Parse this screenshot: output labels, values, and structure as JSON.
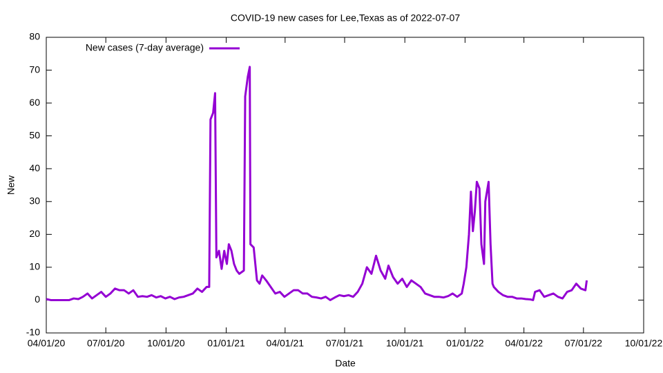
{
  "chart_data": {
    "type": "line",
    "title": "COVID-19 new cases for Lee,Texas as of 2022-07-07",
    "x_label": "Date",
    "y_label": "New",
    "xlim": [
      "2020-04-01",
      "2022-10-01"
    ],
    "xticks": [
      {
        "value": "2020-04-01",
        "label": "04/01/20"
      },
      {
        "value": "2020-07-01",
        "label": "07/01/20"
      },
      {
        "value": "2020-10-01",
        "label": "10/01/20"
      },
      {
        "value": "2021-01-01",
        "label": "01/01/21"
      },
      {
        "value": "2021-04-01",
        "label": "04/01/21"
      },
      {
        "value": "2021-07-01",
        "label": "07/01/21"
      },
      {
        "value": "2021-10-01",
        "label": "10/01/21"
      },
      {
        "value": "2022-01-01",
        "label": "01/01/22"
      },
      {
        "value": "2022-04-01",
        "label": "04/01/22"
      },
      {
        "value": "2022-07-01",
        "label": "07/01/22"
      },
      {
        "value": "2022-10-01",
        "label": "10/01/22"
      }
    ],
    "ylim": [
      -10,
      80
    ],
    "yticks": [
      -10,
      0,
      10,
      20,
      30,
      40,
      50,
      60,
      70,
      80
    ],
    "grid": false,
    "legend_position": "top-left",
    "x": [
      "2020-04-01",
      "2020-04-08",
      "2020-04-15",
      "2020-04-22",
      "2020-04-29",
      "2020-05-06",
      "2020-05-13",
      "2020-05-20",
      "2020-05-27",
      "2020-06-03",
      "2020-06-10",
      "2020-06-17",
      "2020-06-24",
      "2020-07-01",
      "2020-07-08",
      "2020-07-15",
      "2020-07-22",
      "2020-07-29",
      "2020-08-05",
      "2020-08-12",
      "2020-08-19",
      "2020-08-26",
      "2020-09-02",
      "2020-09-09",
      "2020-09-16",
      "2020-09-23",
      "2020-09-30",
      "2020-10-07",
      "2020-10-14",
      "2020-10-21",
      "2020-10-28",
      "2020-11-04",
      "2020-11-11",
      "2020-11-18",
      "2020-11-25",
      "2020-12-02",
      "2020-12-06",
      "2020-12-08",
      "2020-12-12",
      "2020-12-15",
      "2020-12-17",
      "2020-12-21",
      "2020-12-25",
      "2020-12-29",
      "2021-01-02",
      "2021-01-05",
      "2021-01-09",
      "2021-01-13",
      "2021-01-17",
      "2021-01-21",
      "2021-01-28",
      "2021-01-30",
      "2021-02-03",
      "2021-02-06",
      "2021-02-07",
      "2021-02-12",
      "2021-02-17",
      "2021-02-21",
      "2021-02-25",
      "2021-03-03",
      "2021-03-10",
      "2021-03-17",
      "2021-03-24",
      "2021-03-31",
      "2021-04-07",
      "2021-04-14",
      "2021-04-21",
      "2021-04-28",
      "2021-05-05",
      "2021-05-12",
      "2021-05-19",
      "2021-05-26",
      "2021-06-02",
      "2021-06-09",
      "2021-06-16",
      "2021-06-23",
      "2021-06-30",
      "2021-07-07",
      "2021-07-14",
      "2021-07-21",
      "2021-07-28",
      "2021-08-04",
      "2021-08-11",
      "2021-08-18",
      "2021-08-25",
      "2021-09-01",
      "2021-09-06",
      "2021-09-13",
      "2021-09-20",
      "2021-09-27",
      "2021-10-04",
      "2021-10-11",
      "2021-10-18",
      "2021-10-25",
      "2021-11-01",
      "2021-11-08",
      "2021-11-15",
      "2021-11-22",
      "2021-11-29",
      "2021-12-06",
      "2021-12-13",
      "2021-12-20",
      "2021-12-27",
      "2021-12-30",
      "2022-01-03",
      "2022-01-07",
      "2022-01-10",
      "2022-01-13",
      "2022-01-16",
      "2022-01-19",
      "2022-01-23",
      "2022-01-26",
      "2022-01-30",
      "2022-02-01",
      "2022-02-06",
      "2022-02-09",
      "2022-02-12",
      "2022-02-14",
      "2022-02-21",
      "2022-02-28",
      "2022-03-07",
      "2022-03-14",
      "2022-03-21",
      "2022-03-28",
      "2022-04-04",
      "2022-04-11",
      "2022-04-15",
      "2022-04-18",
      "2022-04-25",
      "2022-05-02",
      "2022-05-09",
      "2022-05-16",
      "2022-05-23",
      "2022-05-30",
      "2022-06-06",
      "2022-06-13",
      "2022-06-20",
      "2022-06-27",
      "2022-07-04",
      "2022-07-06"
    ],
    "series": [
      {
        "name": "New cases (7-day average)",
        "color": "#9400d3",
        "values": [
          0.3,
          0,
          0,
          0,
          0,
          0,
          0.5,
          0.3,
          1,
          2,
          0.5,
          1.5,
          2.5,
          1,
          2,
          3.5,
          3,
          3,
          2,
          3,
          1,
          1.2,
          1,
          1.5,
          0.8,
          1.2,
          0.5,
          1,
          0.3,
          0.8,
          1,
          1.5,
          2,
          3.5,
          2.5,
          4,
          4,
          55,
          57,
          63,
          13,
          15,
          9.5,
          15,
          11,
          17,
          15,
          11,
          9,
          8,
          9,
          62,
          68,
          71,
          17,
          16,
          6,
          5,
          7.5,
          6,
          4,
          2,
          2.5,
          1,
          2,
          3,
          3,
          2,
          2,
          1,
          0.8,
          0.5,
          1,
          0,
          0.8,
          1.5,
          1.2,
          1.5,
          1,
          2.5,
          5,
          10,
          8,
          13.5,
          9,
          6.5,
          10.5,
          7,
          5,
          6.5,
          4,
          6,
          5,
          4,
          2,
          1.5,
          1,
          1,
          0.8,
          1.2,
          2,
          1,
          2,
          5,
          10,
          20,
          33,
          21,
          27,
          36,
          34,
          17,
          11,
          30,
          36,
          17,
          5,
          4,
          2.5,
          1.5,
          1,
          1,
          0.5,
          0.5,
          0.3,
          0.2,
          0,
          2.5,
          3,
          1,
          1.5,
          2,
          1,
          0.5,
          2.5,
          3,
          5,
          3.5,
          3,
          6
        ]
      }
    ]
  }
}
